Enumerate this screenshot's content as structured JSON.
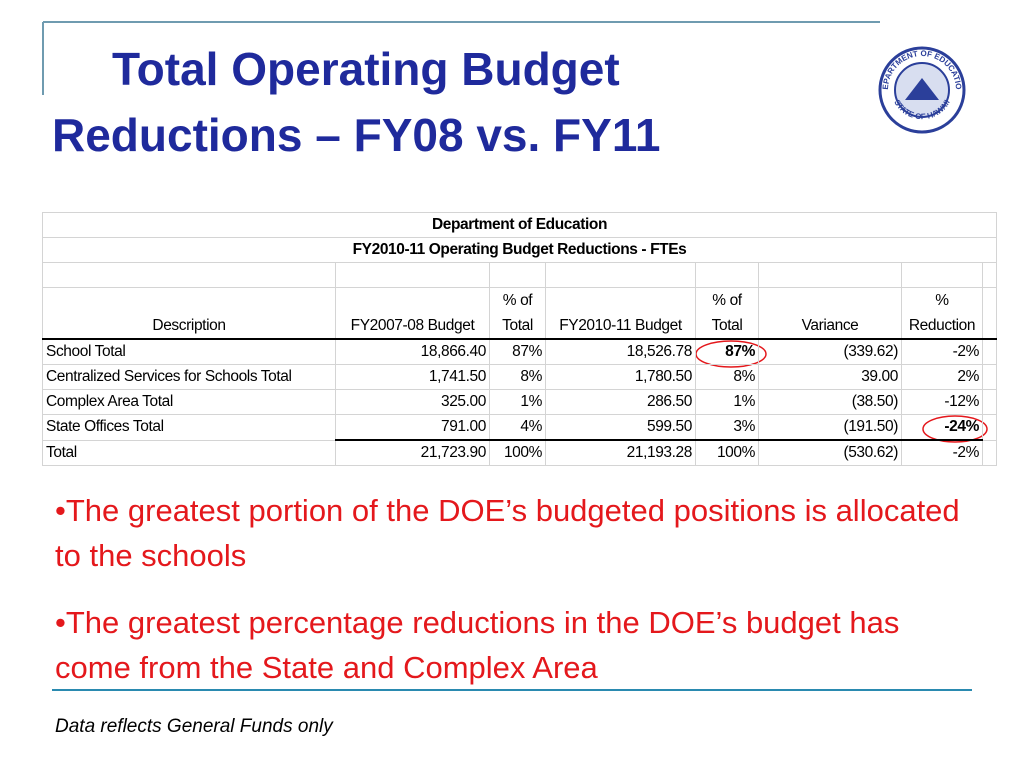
{
  "title": [
    "Total Operating Budget",
    "Reductions – FY08 vs. FY11"
  ],
  "logo": {
    "top_text": "DEPARTMENT OF EDUCATION",
    "bottom_text": "STATE OF HAWAII"
  },
  "table": {
    "title": "Department of Education",
    "subtitle": "FY2010-11 Operating Budget Reductions - FTEs",
    "header": [
      "Description",
      "FY2007-08 Budget",
      "% of\nTotal",
      "FY2010-11 Budget",
      "% of\nTotal",
      "Variance",
      "%\nReduction"
    ],
    "rows": [
      [
        "School Total",
        "18,866.40",
        "87%",
        "18,526.78",
        "87%",
        "(339.62)",
        "-2%"
      ],
      [
        "Centralized Services for Schools Total",
        "1,741.50",
        "8%",
        "1,780.50",
        "8%",
        "39.00",
        "2%"
      ],
      [
        "Complex Area Total",
        "325.00",
        "1%",
        "286.50",
        "1%",
        "(38.50)",
        "-12%"
      ],
      [
        "State Offices Total",
        "791.00",
        "4%",
        "599.50",
        "3%",
        "(191.50)",
        "-24%"
      ],
      [
        "Total",
        "21,723.90",
        "100%",
        "21,193.28",
        "100%",
        "(530.62)",
        "-2%"
      ]
    ]
  },
  "bullets": [
    "•The greatest portion of the DOE’s budgeted positions is allocated to the schools",
    "•The greatest percentage reductions in the DOE’s budget has come from the State and Complex Area"
  ],
  "footnote": "Data reflects General Funds only"
}
